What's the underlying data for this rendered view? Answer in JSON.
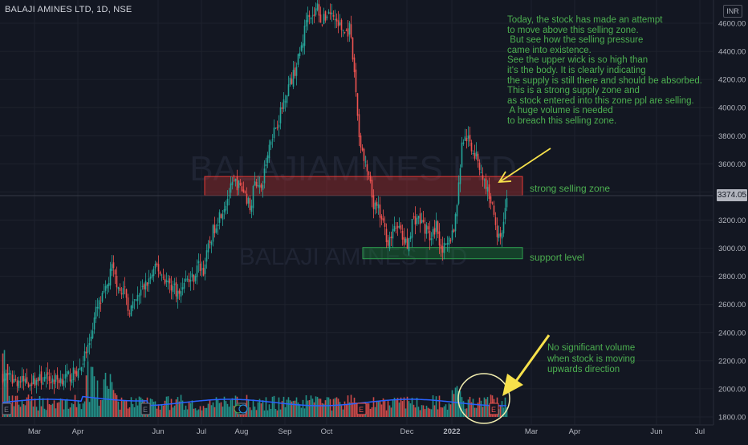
{
  "symbol_title": "BALAJI AMINES LTD, 1D, NSE",
  "currency": "INR",
  "watermark": {
    "line1": "BALAJIAMINES LTD",
    "line2": "BALAJI AMINES LTD"
  },
  "last_price": "3374.05",
  "colors": {
    "up": "#26a69a",
    "down": "#ef5350",
    "volume_ma": "#2962ff",
    "annotation": "#4caf50",
    "selling_zone": "#e53935",
    "support_zone": "#1b8f3a",
    "arrow": "#f7e14b"
  },
  "annotations": {
    "main_note": "Today, the stock has made an attempt\nto move above this selling zone.\n But see how the selling pressure\ncame into existence.\nSee the upper wick is so high than\nit's the body. It is clearly indicating\nthe supply is still there and should be absorbed.\nThis is a strong supply zone and\nas stock entered into this zone ppl are selling.\n A huge volume is needed\nto breach this selling zone.",
    "selling_zone_label": "strong selling zone",
    "support_label": "support level",
    "volume_note": "No significant volume\nwhen stock is moving\nupwards direction"
  },
  "chart_data": {
    "type": "candlestick",
    "timeframe": "1D",
    "y_ticks": [
      1800,
      2000,
      2200,
      2400,
      2600,
      2800,
      3000,
      3200,
      3400,
      3600,
      3800,
      4000,
      4200,
      4400,
      4600
    ],
    "y_tick_labels": [
      "1800.00",
      "2000.00",
      "2200.00",
      "2400.00",
      "2600.00",
      "2800.00",
      "3000.00",
      "3200.00",
      "3400.00",
      "3600.00",
      "3800.00",
      "4000.00",
      "4200.00",
      "4400.00",
      "4600.00"
    ],
    "x_ticks": [
      "Mar",
      "Apr",
      "Jun",
      "Jul",
      "Aug",
      "Sep",
      "Oct",
      "Dec",
      "2022",
      "Mar",
      "Apr",
      "Jun",
      "Jul"
    ],
    "selling_zone": {
      "low": 3375,
      "high": 3510
    },
    "support_zone": {
      "low": 2925,
      "high": 3005
    },
    "earnings_markers": 8,
    "price_path": [
      [
        0,
        2090
      ],
      [
        8,
        2060
      ],
      [
        16,
        2050
      ],
      [
        24,
        2070
      ],
      [
        32,
        2060
      ],
      [
        42,
        2090
      ],
      [
        48,
        2140
      ],
      [
        54,
        2330
      ],
      [
        58,
        2550
      ],
      [
        64,
        2690
      ],
      [
        68,
        2860
      ],
      [
        71,
        2760
      ],
      [
        76,
        2680
      ],
      [
        78,
        2560
      ],
      [
        82,
        2600
      ],
      [
        86,
        2690
      ],
      [
        92,
        2790
      ],
      [
        96,
        2870
      ],
      [
        98,
        2830
      ],
      [
        103,
        2750
      ],
      [
        107,
        2720
      ],
      [
        110,
        2660
      ],
      [
        113,
        2780
      ],
      [
        116,
        2770
      ],
      [
        119,
        2800
      ],
      [
        122,
        2880
      ],
      [
        125,
        2840
      ],
      [
        128,
        3000
      ],
      [
        131,
        3120
      ],
      [
        135,
        3240
      ],
      [
        138,
        3300
      ],
      [
        140,
        3360
      ],
      [
        142,
        3420
      ],
      [
        145,
        3470
      ],
      [
        148,
        3430
      ],
      [
        151,
        3390
      ],
      [
        154,
        3290
      ],
      [
        157,
        3460
      ],
      [
        159,
        3480
      ],
      [
        161,
        3390
      ],
      [
        163,
        3550
      ],
      [
        167,
        3790
      ],
      [
        172,
        3920
      ],
      [
        177,
        4130
      ],
      [
        181,
        4230
      ],
      [
        184,
        4340
      ],
      [
        187,
        4480
      ],
      [
        190,
        4700
      ],
      [
        193,
        4640
      ],
      [
        196,
        4720
      ],
      [
        199,
        4600
      ],
      [
        203,
        4690
      ],
      [
        207,
        4630
      ],
      [
        211,
        4560
      ],
      [
        214,
        4530
      ],
      [
        216,
        4560
      ],
      [
        218,
        4350
      ],
      [
        220,
        4110
      ],
      [
        222,
        3800
      ],
      [
        225,
        3620
      ],
      [
        228,
        3500
      ],
      [
        231,
        3300
      ],
      [
        234,
        3270
      ],
      [
        237,
        3160
      ],
      [
        240,
        3050
      ],
      [
        243,
        3100
      ],
      [
        246,
        3180
      ],
      [
        249,
        3060
      ],
      [
        252,
        3010
      ],
      [
        255,
        3190
      ],
      [
        258,
        3220
      ],
      [
        261,
        3180
      ],
      [
        264,
        3130
      ],
      [
        267,
        3060
      ],
      [
        270,
        3170
      ],
      [
        273,
        3010
      ],
      [
        276,
        2990
      ],
      [
        279,
        3080
      ],
      [
        281,
        3140
      ],
      [
        284,
        3430
      ],
      [
        286,
        3760
      ],
      [
        289,
        3790
      ],
      [
        292,
        3720
      ],
      [
        296,
        3620
      ],
      [
        300,
        3470
      ],
      [
        303,
        3380
      ],
      [
        306,
        3250
      ],
      [
        308,
        3120
      ],
      [
        311,
        3100
      ],
      [
        314,
        3380
      ]
    ]
  }
}
